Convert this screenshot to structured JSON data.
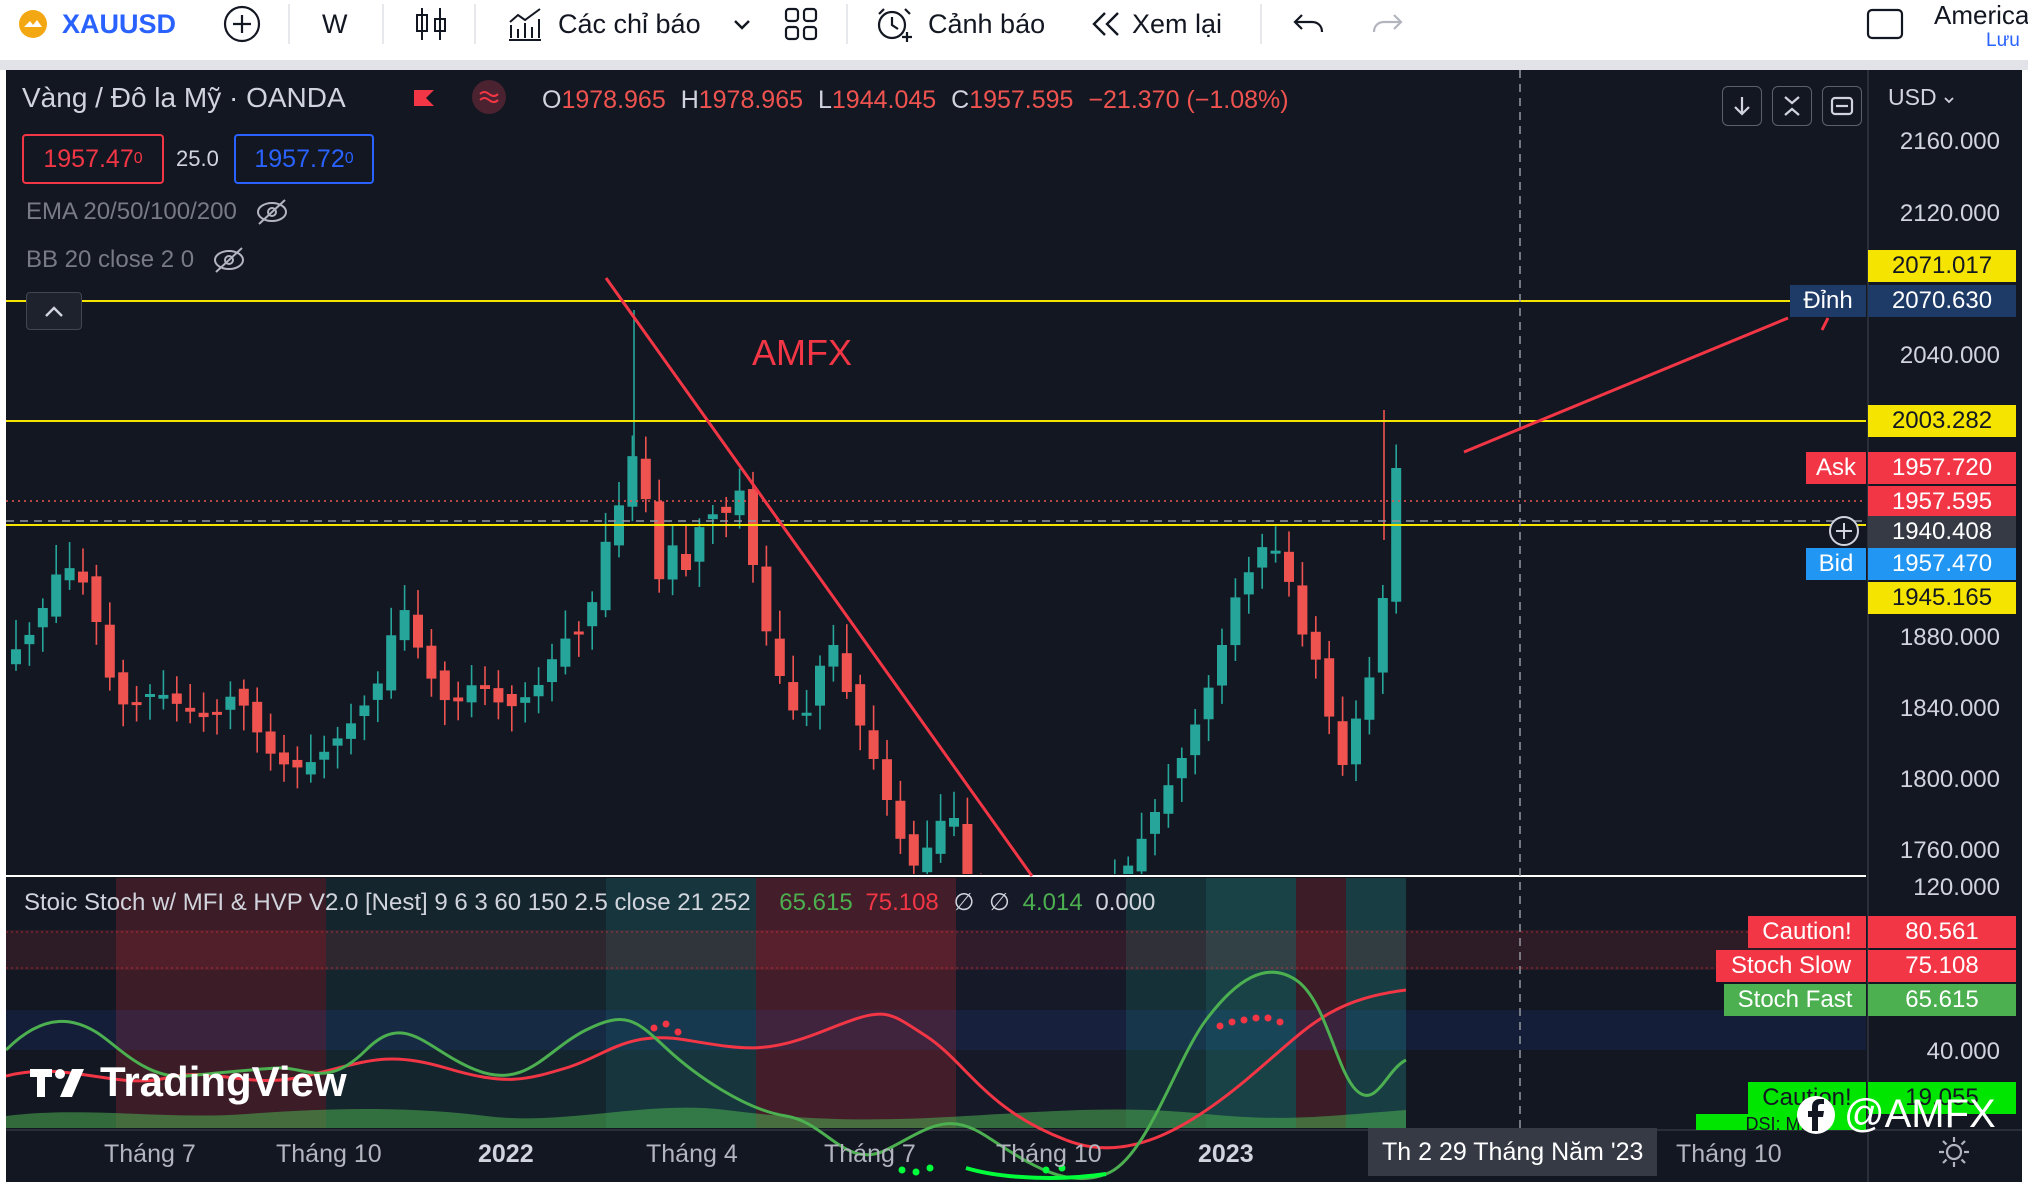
{
  "toolbar": {
    "symbol": "XAUUSD",
    "interval": "W",
    "indicators_label": "Các chỉ báo",
    "alerts_label": "Cảnh báo",
    "replay_label": "Xem lại",
    "region_label": "America",
    "save_label": "Lưu"
  },
  "legend": {
    "title": "Vàng / Đô la Mỹ · OANDA",
    "o_key": "O",
    "open": "1978.965",
    "h_key": "H",
    "high": "1978.965",
    "l_key": "L",
    "low": "1944.045",
    "c_key": "C",
    "close": "1957.595",
    "change": "−21.370 (−1.08%)",
    "sell_price": "1957.47",
    "sell_sup": "0",
    "spread": "25.0",
    "buy_price": "1957.72",
    "buy_sup": "0",
    "indicator_1": "EMA 20/50/100/200",
    "indicator_2": "BB 20 close 2 0"
  },
  "annotation": {
    "text": "AMFX"
  },
  "currency": "USD",
  "price_axis": [
    "2160.000",
    "2120.000",
    "2040.000",
    "1880.000",
    "1840.000",
    "1800.000",
    "1760.000"
  ],
  "price_tags": {
    "level_top": "2071.017",
    "peak_name": "Đỉnh",
    "peak_value": "2070.630",
    "level_mid": "2003.282",
    "ask_name": "Ask",
    "ask_value": "1957.720",
    "close_value": "1957.595",
    "cursor_value": "1940.408",
    "bid_name": "Bid",
    "bid_value": "1957.470",
    "level_low": "1945.165"
  },
  "oscillator": {
    "title": "Stoic Stoch w/ MFI & HVP V2.0 [Nest] 9 6 3 60 150 2.5 close 21 252",
    "v1": "65.615",
    "v2": "75.108",
    "v3": "∅",
    "v4": "∅",
    "v5": "4.014",
    "v6": "0.000",
    "axis": [
      "120.000",
      "40.000"
    ],
    "tag_caution_hi_name": "Caution!",
    "tag_caution_hi_value": "80.561",
    "tag_slow_name": "Stoch Slow",
    "tag_slow_value": "75.108",
    "tag_fast_name": "Stoch Fast",
    "tag_fast_value": "65.615",
    "tag_caution_lo_name": "Caution!",
    "tag_caution_lo_value": "19.055",
    "tag_partial": "DSI: MFI"
  },
  "time_axis": [
    "Tháng 7",
    "Tháng 10",
    "2022",
    "Tháng 4",
    "Tháng 7",
    "Tháng 10",
    "2023",
    "Tháng 10"
  ],
  "crosshair_date": "Th 2 29 Tháng Năm '23",
  "watermark": {
    "brand": "TradingView",
    "handle": "@AMFX"
  },
  "colors": {
    "up": "#26a69a",
    "down": "#ef5350",
    "level": "#f5e400",
    "background": "#131722",
    "stoch_fast": "#4caf50",
    "stoch_slow": "#f23645"
  }
}
